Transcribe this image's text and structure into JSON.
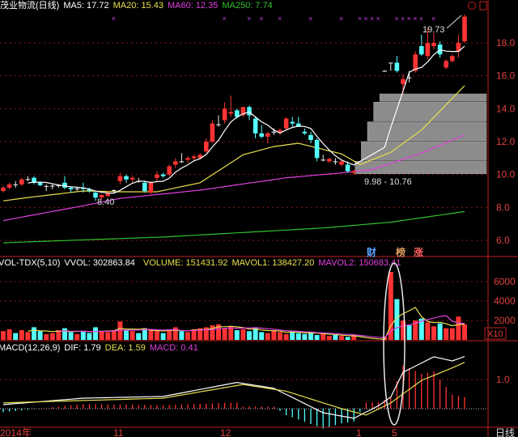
{
  "title": "茂业物流(日线)",
  "price_header": {
    "ma5": "MA5: 17.72",
    "ma20": "MA20: 15.43",
    "ma60": "MA60: 12.35",
    "ma250": "MA250: 7.74"
  },
  "volume_header": {
    "name": "VOL-TDX(5,10)",
    "vvol": "VVOL: 302863.84",
    "volume": "VOLUME: 151431.92",
    "mavol1": "MAVOL1: 138427.20",
    "mavol2": "MAVOL2: 150683.41"
  },
  "macd_header": {
    "name": "MACD(12,26,9)",
    "dif": "DIF: 1.79",
    "dea": "DEA: 1.59",
    "macd": "MACD: 0.41"
  },
  "annotations": {
    "low1": "8.40",
    "range": "9.98 - 10.76",
    "high": "19.73"
  },
  "event_tags": [
    {
      "label": "财",
      "color": "#5aa0ff"
    },
    {
      "label": "榜",
      "color": "#e0a060"
    },
    {
      "label": "涨",
      "color": "#ff6060"
    }
  ],
  "x_axis": {
    "labels": [
      "2014年",
      "11",
      "12",
      "1",
      "5"
    ],
    "period": "日线"
  },
  "volume_scale_label": "X10",
  "colors": {
    "up": "#ff3333",
    "down": "#54ffff",
    "ma5": "#ffffff",
    "ma20": "#e8e050",
    "ma60": "#e040e0",
    "ma250": "#30c030",
    "axis": "#c02020"
  },
  "chart_data": [
    {
      "type": "candlestick",
      "yticks": [
        6.0,
        8.0,
        10.0,
        12.0,
        14.0,
        16.0,
        18.0
      ],
      "ylim": [
        5.3,
        19.9
      ],
      "grid": true,
      "ohlc": [
        [
          9.0,
          9.3,
          8.9,
          9.2
        ],
        [
          9.2,
          9.5,
          9.1,
          9.4
        ],
        [
          9.4,
          9.6,
          9.2,
          9.38
        ],
        [
          9.4,
          9.8,
          9.3,
          9.7
        ],
        [
          9.7,
          9.9,
          9.6,
          9.72
        ],
        [
          9.8,
          9.9,
          9.4,
          9.5
        ],
        [
          9.5,
          9.6,
          9.3,
          9.35
        ],
        [
          9.3,
          9.4,
          9.0,
          9.3
        ],
        [
          9.3,
          9.4,
          9.1,
          9.32
        ],
        [
          9.3,
          9.4,
          9.2,
          9.35
        ],
        [
          9.5,
          9.9,
          9.1,
          9.2
        ],
        [
          9.2,
          9.3,
          8.9,
          9.1
        ],
        [
          9.1,
          9.25,
          9.0,
          9.15
        ],
        [
          9.2,
          9.5,
          8.9,
          9.12
        ],
        [
          9.1,
          9.2,
          8.9,
          9.0
        ],
        [
          8.9,
          9.0,
          8.4,
          8.6
        ],
        [
          8.6,
          8.8,
          8.5,
          8.75
        ],
        [
          8.7,
          9.0,
          8.6,
          8.9
        ],
        [
          9.0,
          9.1,
          8.9,
          9.05
        ],
        [
          9.6,
          10.1,
          9.4,
          9.9
        ],
        [
          9.9,
          10.0,
          9.5,
          9.7
        ],
        [
          9.7,
          9.9,
          9.5,
          9.8
        ],
        [
          9.6,
          9.8,
          9.5,
          9.55
        ],
        [
          9.5,
          9.6,
          8.9,
          9.0
        ],
        [
          8.9,
          9.6,
          8.8,
          9.5
        ],
        [
          9.8,
          10.2,
          9.6,
          10.0
        ],
        [
          10.0,
          10.1,
          9.8,
          9.9
        ],
        [
          10.0,
          10.6,
          9.9,
          10.5
        ],
        [
          10.6,
          11.0,
          10.4,
          10.8
        ],
        [
          10.8,
          11.3,
          10.7,
          10.75
        ],
        [
          10.9,
          11.1,
          10.7,
          11.0
        ],
        [
          11.0,
          11.2,
          10.8,
          11.1
        ],
        [
          11.0,
          11.3,
          10.9,
          11.2
        ],
        [
          11.4,
          12.2,
          11.3,
          12.0
        ],
        [
          12.0,
          13.3,
          11.9,
          13.1
        ],
        [
          13.0,
          13.6,
          12.9,
          13.05
        ],
        [
          13.3,
          14.4,
          13.1,
          14.0
        ],
        [
          13.7,
          14.8,
          13.5,
          13.8
        ],
        [
          13.9,
          14.0,
          13.4,
          13.5
        ],
        [
          13.6,
          14.1,
          13.5,
          14.1
        ],
        [
          14.1,
          14.2,
          13.3,
          13.6
        ],
        [
          13.4,
          13.5,
          12.2,
          12.5
        ],
        [
          12.5,
          13.0,
          12.2,
          12.3
        ],
        [
          12.3,
          12.6,
          11.9,
          12.5
        ],
        [
          12.6,
          12.8,
          12.4,
          12.6
        ],
        [
          12.6,
          12.8,
          12.4,
          12.7
        ],
        [
          12.8,
          13.5,
          12.7,
          13.4
        ],
        [
          13.2,
          13.5,
          12.9,
          13.1
        ],
        [
          13.1,
          13.5,
          12.9,
          12.9
        ],
        [
          12.6,
          12.8,
          12.4,
          12.5
        ],
        [
          12.4,
          12.6,
          11.9,
          12.1
        ],
        [
          12.1,
          12.2,
          10.8,
          11.0
        ],
        [
          10.9,
          11.2,
          10.8,
          10.9
        ],
        [
          10.8,
          11.0,
          10.7,
          10.95
        ],
        [
          10.8,
          11.0,
          10.6,
          10.75
        ],
        [
          10.6,
          10.9,
          10.5,
          10.8
        ],
        [
          10.6,
          10.8,
          10.1,
          10.2
        ],
        [
          10.1,
          10.3,
          9.98,
          10.2
        ],
        null,
        null,
        null,
        null,
        [
          16.3,
          16.35,
          16.25,
          16.3
        ],
        [
          16.8,
          16.8,
          16.3,
          16.8
        ],
        [
          16.8,
          17.2,
          16.2,
          16.3
        ],
        [
          15.5,
          16.1,
          14.9,
          15.8
        ],
        [
          15.9,
          16.3,
          15.6,
          15.85
        ],
        [
          16.3,
          17.5,
          16.2,
          17.3
        ],
        [
          17.8,
          18.5,
          17.2,
          17.3
        ],
        [
          17.2,
          18.9,
          17.0,
          18.0
        ],
        [
          17.8,
          18.6,
          17.6,
          18.0
        ],
        [
          17.9,
          18.1,
          17.1,
          17.3
        ],
        [
          16.5,
          17.0,
          16.4,
          16.9
        ],
        [
          16.9,
          17.3,
          16.8,
          17.2
        ],
        [
          17.5,
          18.5,
          17.1,
          18.0
        ],
        [
          18.1,
          19.73,
          18.0,
          19.6
        ]
      ],
      "ma20": [
        [
          0,
          8.4
        ],
        [
          4,
          8.6
        ],
        [
          13,
          9.0
        ],
        [
          19,
          8.95
        ],
        [
          25,
          8.95
        ],
        [
          32,
          9.5
        ],
        [
          39,
          11.2
        ],
        [
          44,
          11.7
        ],
        [
          48,
          11.9
        ],
        [
          55,
          11.25
        ],
        [
          58,
          10.6
        ],
        [
          63,
          11.35
        ],
        [
          68,
          12.7
        ],
        [
          75,
          15.4
        ]
      ],
      "ma60": [
        [
          0,
          7.2
        ],
        [
          13,
          8.1
        ],
        [
          19,
          8.55
        ],
        [
          32,
          9.05
        ],
        [
          46,
          9.8
        ],
        [
          55,
          10.1
        ],
        [
          60,
          10.3
        ],
        [
          68,
          11.3
        ],
        [
          75,
          12.4
        ]
      ],
      "ma250": [
        [
          0,
          5.85
        ],
        [
          26,
          6.2
        ],
        [
          52,
          6.75
        ],
        [
          63,
          7.1
        ],
        [
          75,
          7.75
        ]
      ],
      "gap_bands": [
        [
          10.0,
          10.8,
          58
        ],
        [
          10.8,
          12.0,
          59
        ],
        [
          12.0,
          13.2,
          60
        ],
        [
          13.2,
          14.4,
          61
        ],
        [
          14.4,
          14.9,
          62
        ]
      ],
      "event_marker_days": [
        18,
        36,
        40,
        42,
        45,
        50,
        55,
        58,
        59,
        60,
        61,
        64,
        65,
        66,
        67,
        68,
        70,
        75
      ]
    },
    {
      "type": "bar",
      "yticks": [
        2000,
        4000,
        6000
      ],
      "volume": [
        900,
        1100,
        700,
        1000,
        800,
        1300,
        900,
        600,
        700,
        1000,
        1200,
        800,
        600,
        900,
        700,
        1300,
        900,
        800,
        1000,
        1900,
        1000,
        900,
        700,
        1200,
        1100,
        900,
        700,
        1000,
        1300,
        900,
        800,
        1100,
        1200,
        1300,
        1500,
        1600,
        1200,
        1400,
        1000,
        1100,
        900,
        1300,
        800,
        700,
        1000,
        800,
        600,
        900,
        700,
        600,
        800,
        500,
        600,
        400,
        500,
        400,
        300,
        500,
        0,
        0,
        0,
        0,
        300,
        7000,
        4200,
        2000,
        1500,
        2000,
        2200,
        1800,
        1400,
        1700,
        1200,
        1200,
        2400,
        1600
      ]
    },
    {
      "type": "line",
      "yticks": [
        1.0
      ],
      "dif": [
        [
          0,
          0.14
        ],
        [
          13,
          0.36
        ],
        [
          26,
          0.42
        ],
        [
          38,
          0.9
        ],
        [
          44,
          0.7
        ],
        [
          52,
          -0.14
        ],
        [
          57,
          -0.33
        ],
        [
          61,
          0.1
        ],
        [
          63,
          0.4
        ],
        [
          65,
          1.25
        ],
        [
          70,
          1.78
        ],
        [
          73,
          1.64
        ],
        [
          75,
          1.79
        ]
      ],
      "dea": [
        [
          0,
          0.2
        ],
        [
          13,
          0.28
        ],
        [
          26,
          0.36
        ],
        [
          39,
          0.83
        ],
        [
          46,
          0.6
        ],
        [
          55,
          0.0
        ],
        [
          59,
          -0.22
        ],
        [
          63,
          0.2
        ],
        [
          68,
          0.97
        ],
        [
          73,
          1.4
        ],
        [
          75,
          1.59
        ]
      ]
    }
  ]
}
